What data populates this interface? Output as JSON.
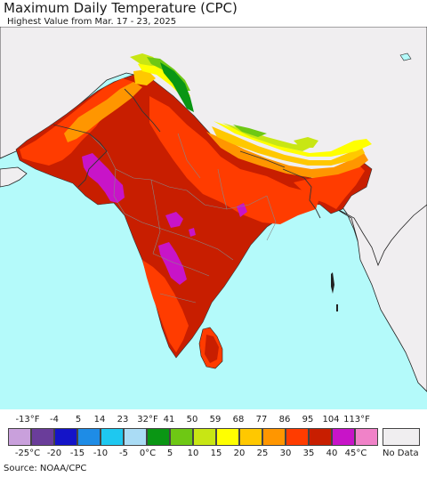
{
  "header": {
    "title": "Maximum Daily Temperature (CPC)",
    "subtitle": "Highest Value from Mar. 17 - 23, 2025"
  },
  "legend": {
    "fahrenheit_labels": [
      "-13°F",
      "-4",
      "5",
      "14",
      "23",
      "32°F",
      "41",
      "50",
      "59",
      "68",
      "77",
      "86",
      "95",
      "104",
      "113°F"
    ],
    "celsius_labels": [
      "-25°C",
      "-20",
      "-15",
      "-10",
      "-5",
      "0°C",
      "5",
      "10",
      "15",
      "20",
      "25",
      "30",
      "35",
      "40",
      "45°C"
    ],
    "colors": [
      "#c9a0dc",
      "#6a3d9a",
      "#1414c8",
      "#1e8ce6",
      "#1ec8f0",
      "#aadcf5",
      "#0a9614",
      "#6ec814",
      "#c8e614",
      "#ffff00",
      "#ffc800",
      "#ff9600",
      "#ff3c00",
      "#c81e00",
      "#c814c8",
      "#f082c8"
    ],
    "no_data_label": "No Data",
    "no_data_color": "#f0eef0"
  },
  "source": "Source: NOAA/CPC",
  "map": {
    "land_no_data_color": "#f0eef0",
    "ocean_color": "#b4fafa",
    "border_color": "#888888"
  }
}
